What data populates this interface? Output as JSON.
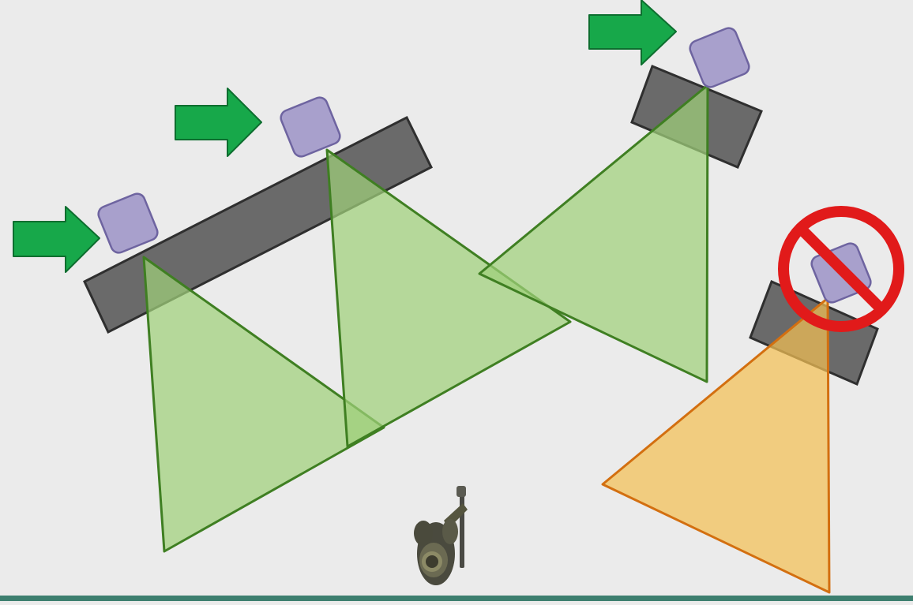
{
  "colors": {
    "background": "#ebebeb",
    "wall": "#6a6a6a",
    "wall_stroke": "#2f2f2f",
    "cover_node": "#a8a0cc",
    "cover_node_stroke": "#6e64a0",
    "arrow": "#17a84a",
    "arrow_stroke": "#0d6e2f",
    "vision_cone_active": "#9fd07a",
    "vision_cone_active_stroke": "#3f7f22",
    "vision_cone_disabled": "#f3bf55",
    "vision_cone_disabled_stroke": "#d36f10",
    "prohibited": "#e11a1a",
    "bottom_bar": "#3d7f6f"
  },
  "icons": {
    "direction_arrow": "right-arrow-icon",
    "disabled_marker": "prohibited-icon",
    "agent": "soldier-character-icon"
  },
  "diagram": {
    "walls": [
      {
        "name": "wall-left"
      },
      {
        "name": "wall-top-right"
      },
      {
        "name": "wall-right"
      }
    ],
    "cover_nodes": [
      {
        "name": "cover-node-1",
        "state": "active"
      },
      {
        "name": "cover-node-2",
        "state": "active"
      },
      {
        "name": "cover-node-3",
        "state": "active"
      },
      {
        "name": "cover-node-4",
        "state": "disabled"
      }
    ],
    "vision_cones": [
      {
        "name": "vision-cone-1",
        "state": "active"
      },
      {
        "name": "vision-cone-2",
        "state": "active"
      },
      {
        "name": "vision-cone-3",
        "state": "active"
      },
      {
        "name": "vision-cone-4",
        "state": "disabled"
      }
    ],
    "direction_arrows": 3
  }
}
